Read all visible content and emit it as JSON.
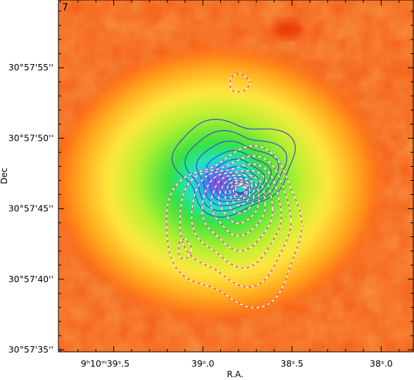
{
  "chart_data": {
    "type": "heatmap",
    "panel_label": "7",
    "xlabel": "R.A.",
    "ylabel": "Dec",
    "x_ticks": [
      {
        "value_sec": 39.5,
        "label": "9ʰ10ᵐ39ˢ.5"
      },
      {
        "value_sec": 39.0,
        "label": "39ˢ.0"
      },
      {
        "value_sec": 38.5,
        "label": "38ˢ.5"
      },
      {
        "value_sec": 38.0,
        "label": "38ˢ.0"
      }
    ],
    "y_ticks": [
      {
        "value_arcsec": 55,
        "label": "30°57'55''"
      },
      {
        "value_arcsec": 50,
        "label": "30°57'50''"
      },
      {
        "value_arcsec": 45,
        "label": "30°57'45''"
      },
      {
        "value_arcsec": 40,
        "label": "30°57'40''"
      },
      {
        "value_arcsec": 35,
        "label": "30°57'35''"
      }
    ],
    "xlim_sec": [
      39.81,
      37.82
    ],
    "ylim_arcsec": [
      34.85,
      59.8
    ],
    "x_axis_reversed": true,
    "colormap": [
      "#f03c00",
      "#ff6a10",
      "#ffb020",
      "#ffe840",
      "#b8f030",
      "#30e040",
      "#20e8d0",
      "#3070ff",
      "#d020c0"
    ],
    "emission_peak": {
      "ra_sec": 38.79,
      "dec_arcsec": 46.5
    },
    "contours_solid_color": "#3a4cc8",
    "contours_dashed_color": "#e8507a",
    "contour_sets": [
      {
        "style": "solid",
        "levels": 10,
        "peak": {
          "ra_sec": 38.79,
          "dec_arcsec": 46.5
        }
      },
      {
        "style": "dashed",
        "levels": 10,
        "peak": {
          "ra_sec": 38.79,
          "dec_arcsec": 46.3
        }
      }
    ]
  }
}
